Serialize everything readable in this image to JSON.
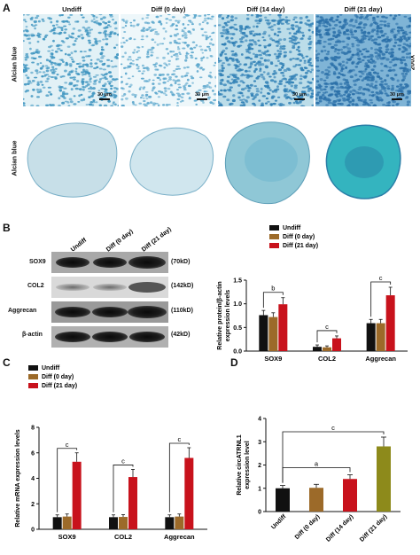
{
  "panel_letters": {
    "A": "A",
    "B": "B",
    "C": "C",
    "D": "D"
  },
  "panel_a": {
    "columns": [
      "Undiff",
      "Diff (0 day)",
      "Diff (14 day)",
      "Diff (21 day)"
    ],
    "row_label": "Alcian blue",
    "magnification": "200X",
    "scale_bar": "30 μm",
    "colors": {
      "light": "#c9e4ec",
      "dot": "#3f95c0",
      "dark": "#2a6fa8"
    }
  },
  "panel_b_blot": {
    "lanes": [
      "Undiff",
      "Diff (0 day)",
      "Diff (21 day)"
    ],
    "proteins": [
      {
        "name": "SOX9",
        "size": "(70kD)"
      },
      {
        "name": "COL2",
        "size": "(142kD)"
      },
      {
        "name": "Aggrecan",
        "size": "(110kD)"
      },
      {
        "name": "β-actin",
        "size": "(42kD)"
      }
    ]
  },
  "chart_data": [
    {
      "panel": "B",
      "type": "bar",
      "categories": [
        "SOX9",
        "COL2",
        "Aggrecan"
      ],
      "series": [
        {
          "name": "Undiff",
          "color": "#111111",
          "values": [
            0.76,
            0.09,
            0.59
          ],
          "errors": [
            0.1,
            0.04,
            0.08
          ]
        },
        {
          "name": "Diff (0 day)",
          "color": "#9c6a29",
          "values": [
            0.72,
            0.08,
            0.59
          ],
          "errors": [
            0.09,
            0.03,
            0.08
          ]
        },
        {
          "name": "Diff (21 day)",
          "color": "#c8121c",
          "values": [
            0.99,
            0.27,
            1.18
          ],
          "errors": [
            0.14,
            0.05,
            0.17
          ]
        }
      ],
      "ylabel": "Relative protein/β-actin expression levels",
      "ylim": [
        0,
        1.5
      ],
      "yticks": [
        "0.0",
        "0.5",
        "1.0",
        "1.5"
      ],
      "legend_position": "top-left",
      "annotations": [
        {
          "category": "SOX9",
          "text": "b"
        },
        {
          "category": "COL2",
          "text": "c"
        },
        {
          "category": "Aggrecan",
          "text": "c"
        }
      ]
    },
    {
      "panel": "C",
      "type": "bar",
      "categories": [
        "SOX9",
        "COL2",
        "Aggrecan"
      ],
      "series": [
        {
          "name": "Undiff",
          "color": "#111111",
          "values": [
            0.95,
            0.95,
            0.95
          ],
          "errors": [
            0.18,
            0.18,
            0.18
          ]
        },
        {
          "name": "Diff (0 day)",
          "color": "#9c6a29",
          "values": [
            1.0,
            0.97,
            1.0
          ],
          "errors": [
            0.2,
            0.18,
            0.2
          ]
        },
        {
          "name": "Diff (21 day)",
          "color": "#c8121c",
          "values": [
            5.3,
            4.1,
            5.6
          ],
          "errors": [
            0.7,
            0.6,
            0.8
          ]
        }
      ],
      "ylabel": "Relative mRNA expression levels",
      "ylim": [
        0,
        8
      ],
      "yticks": [
        "0",
        "2",
        "4",
        "6",
        "8"
      ],
      "legend_position": "top-left",
      "annotations": [
        {
          "category": "SOX9",
          "text": "c"
        },
        {
          "category": "COL2",
          "text": "c"
        },
        {
          "category": "Aggrecan",
          "text": "c"
        }
      ]
    },
    {
      "panel": "D",
      "type": "bar",
      "categories": [
        "Undiff",
        "Diff (0 day)",
        "Diff (14 day)",
        "Diff (21 day)"
      ],
      "values": [
        1.0,
        1.02,
        1.4,
        2.8
      ],
      "errors": [
        0.12,
        0.15,
        0.18,
        0.4
      ],
      "colors": [
        "#111111",
        "#9c6a29",
        "#c8121c",
        "#8d8a1b"
      ],
      "ylabel": "Relative circATRNL1 expression level",
      "ylim": [
        0,
        4
      ],
      "yticks": [
        "0",
        "1",
        "2",
        "3",
        "4"
      ],
      "brackets": [
        {
          "from": 0,
          "to": 2,
          "text": "a"
        },
        {
          "from": 0,
          "to": 3,
          "text": "c"
        }
      ]
    }
  ]
}
